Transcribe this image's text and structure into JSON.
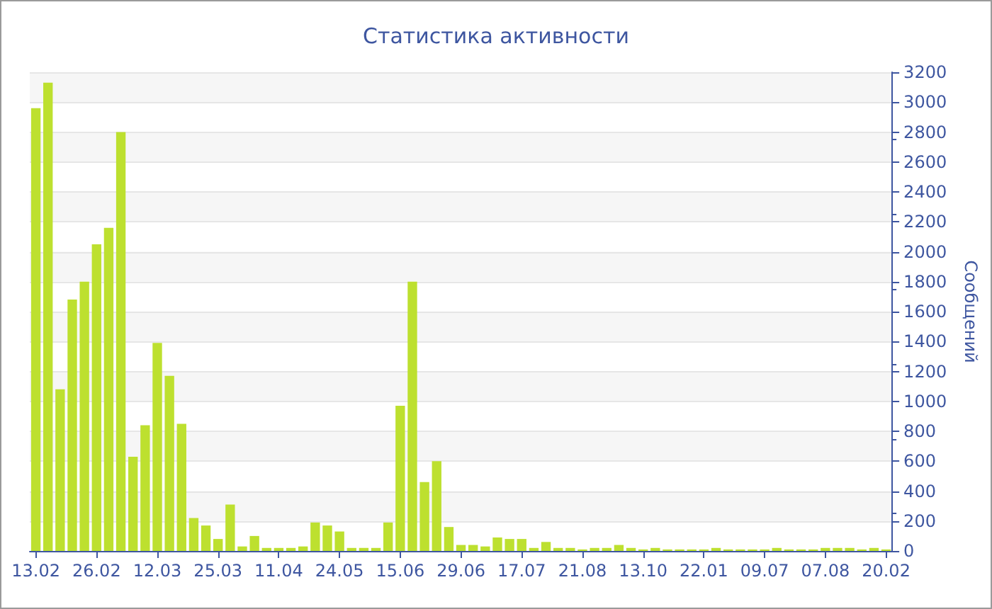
{
  "chart_data": {
    "type": "bar",
    "title": "Статистика активности",
    "ylabel": "Сообщений",
    "categories": [
      "13.02",
      null,
      null,
      null,
      null,
      "26.02",
      null,
      null,
      null,
      null,
      "12.03",
      null,
      null,
      null,
      null,
      "25.03",
      null,
      null,
      null,
      null,
      "11.04",
      null,
      null,
      null,
      null,
      "24.05",
      null,
      null,
      null,
      null,
      "15.06",
      null,
      null,
      null,
      null,
      "29.06",
      null,
      null,
      null,
      null,
      "17.07",
      null,
      null,
      null,
      null,
      "21.08",
      null,
      null,
      null,
      null,
      "13.10",
      null,
      null,
      null,
      null,
      "22.01",
      null,
      null,
      null,
      null,
      "09.07",
      null,
      null,
      null,
      null,
      "07.08",
      null,
      null,
      null,
      null,
      "20.02"
    ],
    "values": [
      2960,
      3130,
      1080,
      1680,
      1800,
      2050,
      2160,
      2800,
      630,
      840,
      1390,
      1170,
      850,
      220,
      170,
      80,
      310,
      30,
      100,
      20,
      20,
      20,
      30,
      190,
      170,
      130,
      20,
      20,
      20,
      190,
      970,
      1800,
      460,
      600,
      160,
      40,
      40,
      30,
      90,
      80,
      80,
      20,
      60,
      20,
      20,
      10,
      20,
      20,
      40,
      20,
      10,
      20,
      10,
      10,
      10,
      10,
      20,
      10,
      10,
      10,
      10,
      20,
      10,
      10,
      10,
      20,
      20,
      20,
      10,
      20,
      10
    ],
    "color": "#bde02f",
    "ylim": [
      0,
      3200
    ],
    "yticks": [
      0,
      200,
      400,
      600,
      800,
      1000,
      1200,
      1400,
      1600,
      1800,
      2000,
      2200,
      2400,
      2600,
      2800,
      3000,
      3200
    ],
    "grid": "y"
  }
}
